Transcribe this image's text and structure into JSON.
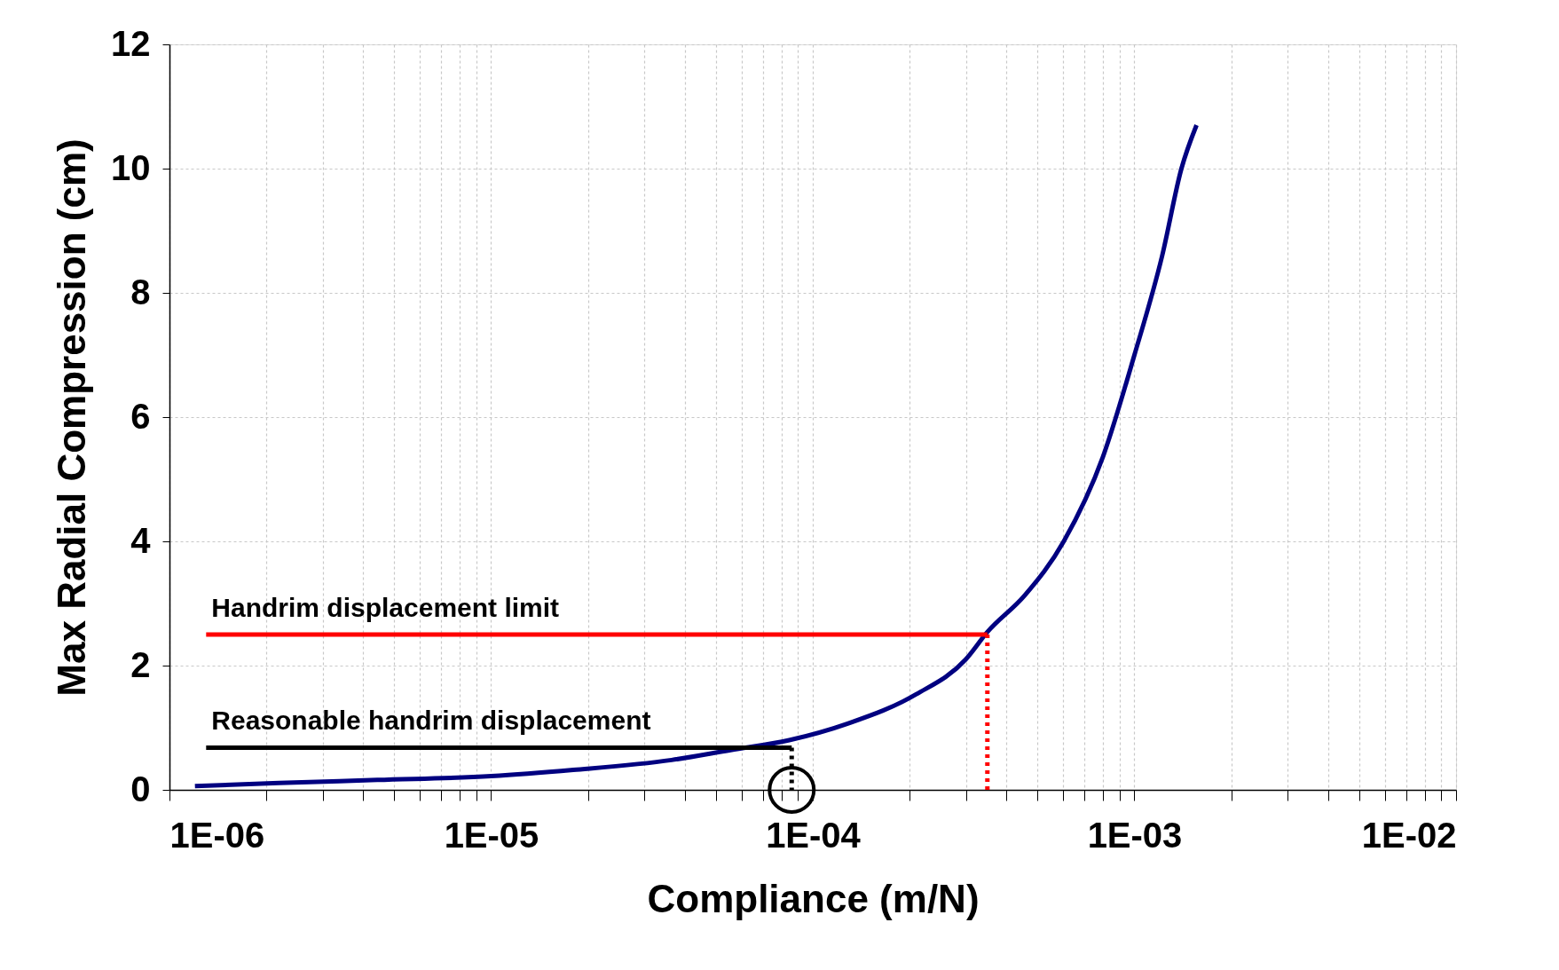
{
  "chart_data": {
    "type": "line",
    "xlabel": "Compliance (m/N)",
    "ylabel": "Max Radial Compression (cm)",
    "log": "x",
    "grid": true,
    "xlim": [
      1e-06,
      0.01
    ],
    "ylim": [
      0,
      12
    ],
    "yticks": [
      0,
      2,
      4,
      6,
      8,
      10,
      12
    ],
    "xticks": [
      {
        "value": 1e-06,
        "label": "1E-06"
      },
      {
        "value": 2e-06,
        "label": null
      },
      {
        "value": 3e-06,
        "label": null
      },
      {
        "value": 4e-06,
        "label": null
      },
      {
        "value": 5e-06,
        "label": null
      },
      {
        "value": 6e-06,
        "label": null
      },
      {
        "value": 7e-06,
        "label": null
      },
      {
        "value": 8e-06,
        "label": null
      },
      {
        "value": 9e-06,
        "label": null
      },
      {
        "value": 1e-05,
        "label": "1E-05"
      },
      {
        "value": 2e-05,
        "label": null
      },
      {
        "value": 3e-05,
        "label": null
      },
      {
        "value": 4e-05,
        "label": null
      },
      {
        "value": 5e-05,
        "label": null
      },
      {
        "value": 6e-05,
        "label": null
      },
      {
        "value": 7e-05,
        "label": null
      },
      {
        "value": 8e-05,
        "label": null
      },
      {
        "value": 9e-05,
        "label": null
      },
      {
        "value": 0.0001,
        "label": "1E-04"
      },
      {
        "value": 0.0002,
        "label": null
      },
      {
        "value": 0.0003,
        "label": null
      },
      {
        "value": 0.0004,
        "label": null
      },
      {
        "value": 0.0005,
        "label": null
      },
      {
        "value": 0.0006,
        "label": null
      },
      {
        "value": 0.0007,
        "label": null
      },
      {
        "value": 0.0008,
        "label": null
      },
      {
        "value": 0.0009,
        "label": null
      },
      {
        "value": 0.001,
        "label": "1E-03"
      },
      {
        "value": 0.002,
        "label": null
      },
      {
        "value": 0.003,
        "label": null
      },
      {
        "value": 0.004,
        "label": null
      },
      {
        "value": 0.005,
        "label": null
      },
      {
        "value": 0.006,
        "label": null
      },
      {
        "value": 0.007,
        "label": null
      },
      {
        "value": 0.008,
        "label": null
      },
      {
        "value": 0.009,
        "label": null
      },
      {
        "value": 0.01,
        "label": "1E-02"
      }
    ],
    "series": [
      {
        "color": "#000080",
        "line_style": "solid",
        "x": [
          1.2e-06,
          2.19e-06,
          4.43e-06,
          1e-05,
          1.8e-05,
          3.64e-05,
          5.55e-05,
          8.45e-05,
          0.000129,
          0.00021,
          0.000299,
          0.000349,
          0.000456,
          0.000603,
          0.000798,
          0.001,
          0.00122,
          0.0014,
          0.00156
        ],
        "values": [
          0.06,
          0.11,
          0.16,
          0.22,
          0.32,
          0.48,
          0.64,
          0.8,
          1.07,
          1.54,
          2.1,
          2.54,
          3.13,
          4.0,
          5.36,
          7.0,
          8.6,
          10.0,
          10.7
        ]
      },
      {
        "name": "Handrim displacement limit",
        "color": "#ff0000",
        "line_style": "solid",
        "x": [
          1.3e-06,
          0.000349
        ],
        "values": [
          2.5,
          2.5
        ]
      },
      {
        "color": "#ff0000",
        "line_style": "dotted",
        "x": [
          0.000349,
          0.000349
        ],
        "values": [
          2.5,
          0
        ]
      },
      {
        "name": "Reasonable handrim displacement",
        "color": "#000000",
        "line_style": "solid",
        "x": [
          1.3e-06,
          8.6e-05
        ],
        "values": [
          0.68,
          0.68
        ]
      },
      {
        "color": "#000000",
        "line_style": "dotted",
        "x": [
          8.6e-05,
          8.6e-05
        ],
        "values": [
          0.68,
          0
        ]
      },
      {
        "type": "scatter",
        "color": "#000000",
        "marker": "circle",
        "x": [
          8.6e-05
        ],
        "values": [
          0
        ]
      }
    ]
  }
}
